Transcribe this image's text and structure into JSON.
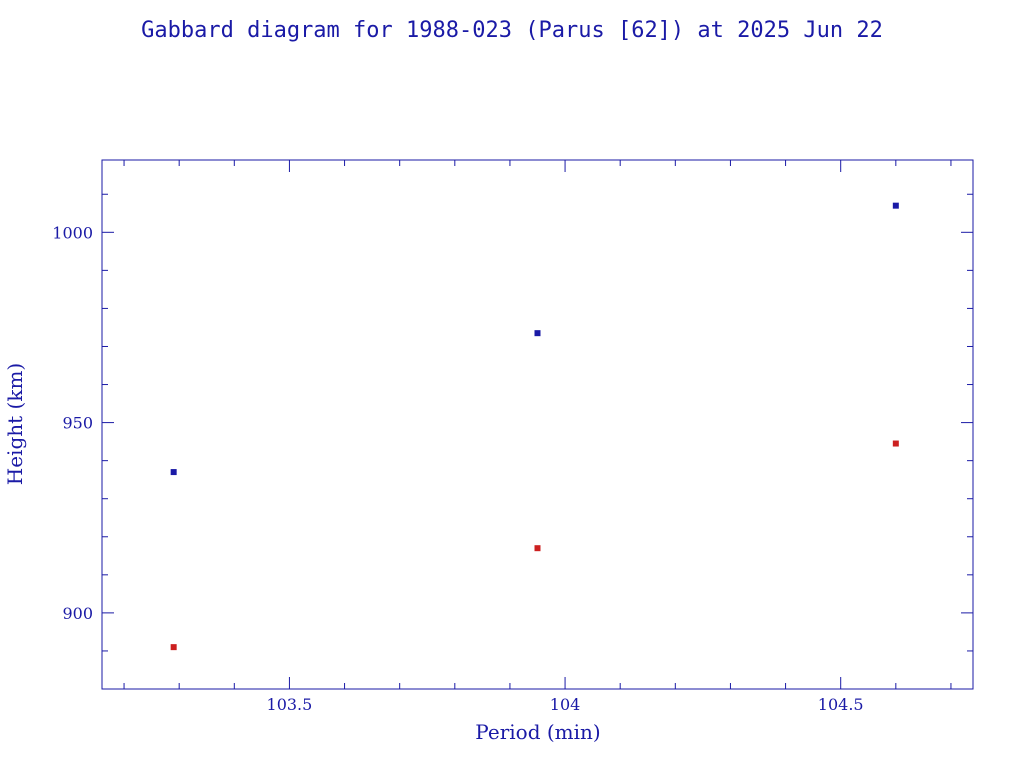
{
  "chart_data": {
    "type": "scatter",
    "title": "Gabbard diagram for 1988-023 (Parus [62]) at 2025 Jun 22",
    "xlabel": "Period (min)",
    "ylabel": "Height (km)",
    "xlim": [
      103.16,
      104.74
    ],
    "ylim": [
      880,
      1019
    ],
    "x_major_ticks": [
      103.5,
      104,
      104.5
    ],
    "x_minor_step": 0.1,
    "y_major_ticks": [
      900,
      950,
      1000
    ],
    "y_minor_step": 10,
    "x_tick_labels": [
      "103.5",
      "104",
      "104.5"
    ],
    "y_tick_labels": [
      "900",
      "950",
      "1000"
    ],
    "grid": false,
    "series": [
      {
        "role": "apogee",
        "color": "#1a1aa6",
        "points": [
          {
            "x": 103.29,
            "y": 937
          },
          {
            "x": 103.95,
            "y": 973.5
          },
          {
            "x": 104.6,
            "y": 1007
          }
        ]
      },
      {
        "role": "perigee",
        "color": "#cc2020",
        "points": [
          {
            "x": 103.29,
            "y": 891
          },
          {
            "x": 103.95,
            "y": 917
          },
          {
            "x": 104.6,
            "y": 944.5
          }
        ]
      }
    ]
  }
}
